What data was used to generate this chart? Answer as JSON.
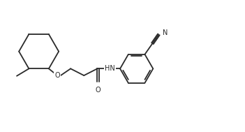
{
  "background_color": "#ffffff",
  "line_color": "#2a2a2a",
  "line_width": 1.3,
  "text_color": "#2a2a2a",
  "font_size": 7.0,
  "fig_width": 3.51,
  "fig_height": 1.89,
  "dpi": 100,
  "xlim": [
    0,
    10
  ],
  "ylim": [
    0,
    5.4
  ]
}
